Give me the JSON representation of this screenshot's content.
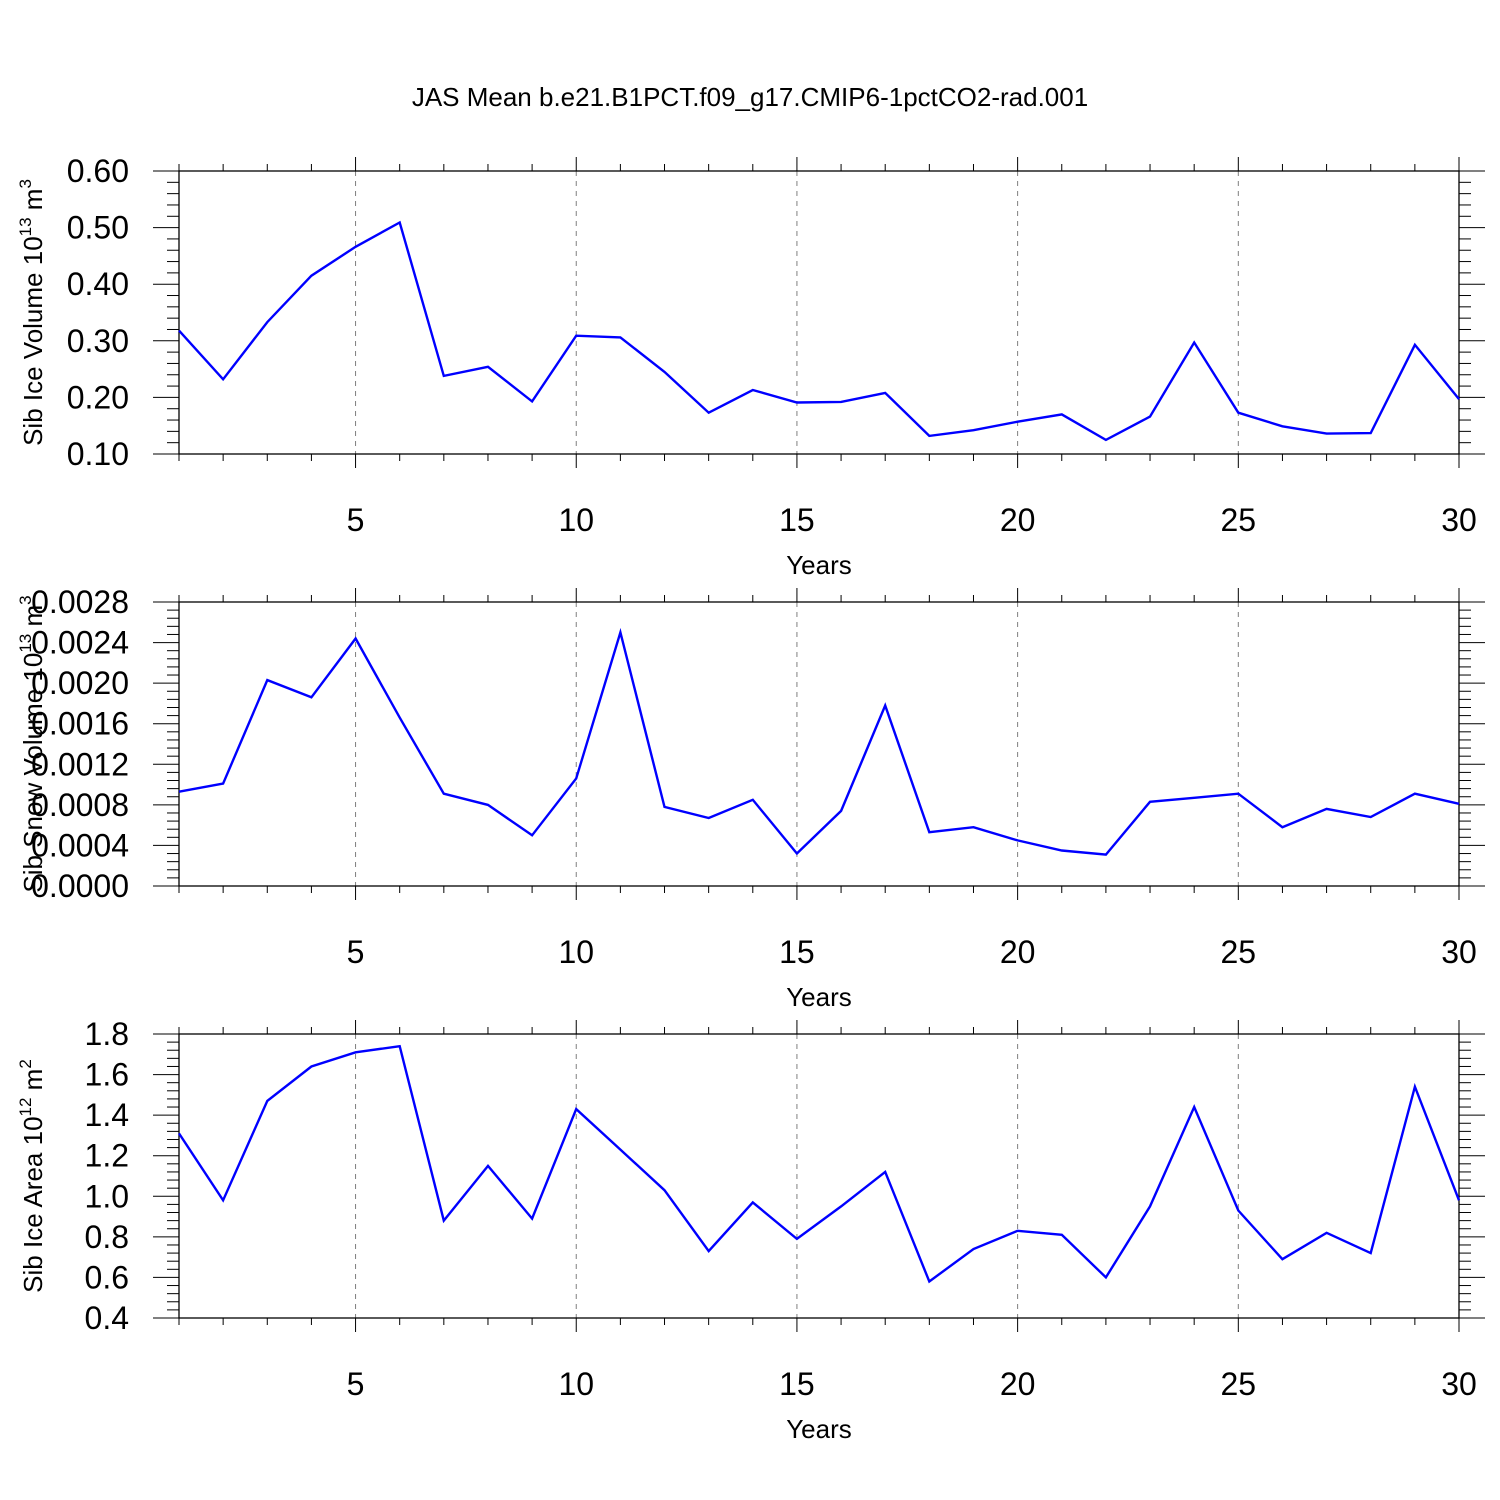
{
  "title": "JAS Mean b.e21.B1PCT.f09_g17.CMIP6-1pctCO2-rad.001",
  "colors": {
    "series": "#0000ff",
    "axis": "#000000",
    "grid": "#7f7f7f"
  },
  "chart_data": [
    {
      "type": "line",
      "ylabel": {
        "text": "Sib Ice Volume 10",
        "exp": "13",
        "unit": " m",
        "unit_exp": "3"
      },
      "xlabel": "Years",
      "xlim": [
        1,
        30
      ],
      "ylim": [
        0.1,
        0.6
      ],
      "yticks": [
        0.1,
        0.2,
        0.3,
        0.4,
        0.5,
        0.6
      ],
      "yticklabels": [
        "0.10",
        "0.20",
        "0.30",
        "0.40",
        "0.50",
        "0.60"
      ],
      "xticks": [
        5,
        10,
        15,
        20,
        25,
        30
      ],
      "xticklabels": [
        "5",
        "10",
        "15",
        "20",
        "25",
        "30"
      ],
      "grid": "vertical dashed at major x ticks",
      "x": [
        1,
        2,
        3,
        4,
        5,
        6,
        7,
        8,
        9,
        10,
        11,
        12,
        13,
        14,
        15,
        16,
        17,
        18,
        19,
        20,
        21,
        22,
        23,
        24,
        25,
        26,
        27,
        28,
        29,
        30
      ],
      "values": [
        0.318,
        0.232,
        0.333,
        0.415,
        0.466,
        0.509,
        0.238,
        0.254,
        0.193,
        0.309,
        0.306,
        0.245,
        0.173,
        0.213,
        0.191,
        0.192,
        0.208,
        0.132,
        0.142,
        0.157,
        0.17,
        0.125,
        0.166,
        0.297,
        0.173,
        0.149,
        0.136,
        0.137,
        0.293,
        0.197
      ]
    },
    {
      "type": "line",
      "ylabel": {
        "text": "Sib Snow Volume 10",
        "exp": "13",
        "unit": " m",
        "unit_exp": "3"
      },
      "xlabel": "Years",
      "xlim": [
        1,
        30
      ],
      "ylim": [
        0.0,
        0.0028
      ],
      "yticks": [
        0.0,
        0.0004,
        0.0008,
        0.0012,
        0.0016,
        0.002,
        0.0024,
        0.0028
      ],
      "yticklabels": [
        "0.0000",
        "0.0004",
        "0.0008",
        "0.0012",
        "0.0016",
        "0.0020",
        "0.0024",
        "0.0028"
      ],
      "xticks": [
        5,
        10,
        15,
        20,
        25,
        30
      ],
      "xticklabels": [
        "5",
        "10",
        "15",
        "20",
        "25",
        "30"
      ],
      "grid": "vertical dashed at major x ticks",
      "x": [
        1,
        2,
        3,
        4,
        5,
        6,
        7,
        8,
        9,
        10,
        11,
        12,
        13,
        14,
        15,
        16,
        17,
        18,
        19,
        20,
        21,
        22,
        23,
        24,
        25,
        26,
        27,
        28,
        29,
        30
      ],
      "values": [
        0.00093,
        0.00101,
        0.00203,
        0.00186,
        0.00244,
        0.00166,
        0.00091,
        0.0008,
        0.0005,
        0.00106,
        0.0025,
        0.00078,
        0.00067,
        0.00085,
        0.00032,
        0.00074,
        0.00178,
        0.00053,
        0.00058,
        0.00045,
        0.00035,
        0.00031,
        0.00083,
        0.00087,
        0.00091,
        0.00058,
        0.00076,
        0.00068,
        0.00091,
        0.00081
      ]
    },
    {
      "type": "line",
      "ylabel": {
        "text": "Sib Ice Area 10",
        "exp": "12",
        "unit": " m",
        "unit_exp": "2"
      },
      "xlabel": "Years",
      "xlim": [
        1,
        30
      ],
      "ylim": [
        0.4,
        1.8
      ],
      "yticks": [
        0.4,
        0.6,
        0.8,
        1.0,
        1.2,
        1.4,
        1.6,
        1.8
      ],
      "yticklabels": [
        "0.4",
        "0.6",
        "0.8",
        "1.0",
        "1.2",
        "1.4",
        "1.6",
        "1.8"
      ],
      "xticks": [
        5,
        10,
        15,
        20,
        25,
        30
      ],
      "xticklabels": [
        "5",
        "10",
        "15",
        "20",
        "25",
        "30"
      ],
      "grid": "vertical dashed at major x ticks",
      "x": [
        1,
        2,
        3,
        4,
        5,
        6,
        7,
        8,
        9,
        10,
        11,
        12,
        13,
        14,
        15,
        16,
        17,
        18,
        19,
        20,
        21,
        22,
        23,
        24,
        25,
        26,
        27,
        28,
        29,
        30
      ],
      "values": [
        1.31,
        0.98,
        1.47,
        1.64,
        1.71,
        1.74,
        0.88,
        1.15,
        0.89,
        1.43,
        1.23,
        1.03,
        0.73,
        0.97,
        0.79,
        0.95,
        1.12,
        0.58,
        0.74,
        0.83,
        0.81,
        0.6,
        0.95,
        1.44,
        0.93,
        0.69,
        0.82,
        0.72,
        1.54,
        0.98
      ]
    }
  ]
}
